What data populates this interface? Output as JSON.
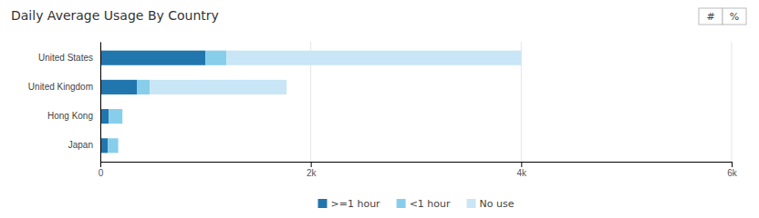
{
  "chart_data": {
    "type": "bar",
    "title": "Daily Average Usage By Country",
    "orientation": "horizontal",
    "stacked": true,
    "grid": true,
    "categories": [
      "United States",
      "United Kingdom",
      "Hong Kong",
      "Japan"
    ],
    "series": [
      {
        "name": ">=1 hour",
        "color": "#2176ae",
        "values": [
          1000,
          350,
          80,
          70
        ]
      },
      {
        "name": "<1 hour",
        "color": "#87ceeb",
        "values": [
          200,
          120,
          130,
          100
        ]
      },
      {
        "name": "No use",
        "color": "#c8e6f5",
        "values": [
          2800,
          1300,
          0,
          0
        ]
      }
    ],
    "xlim": [
      0,
      6000
    ],
    "xticks": [
      0,
      {
        "value": 2000,
        "label": "2k"
      },
      {
        "value": 4000,
        "label": "4k"
      },
      {
        "value": 6000,
        "label": "6k"
      }
    ],
    "annotations": [
      "#",
      "%"
    ]
  }
}
